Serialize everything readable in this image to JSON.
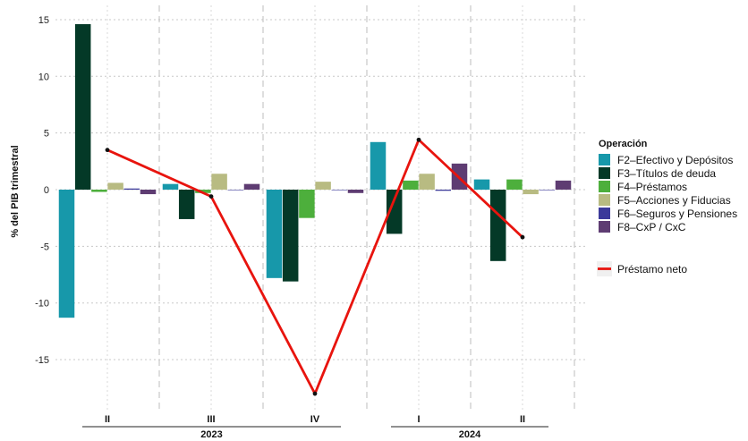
{
  "chart_data": {
    "type": "bar",
    "ylabel": "% del PIB trimestral",
    "ylim": [
      -19,
      16
    ],
    "yticks": [
      -15,
      -10,
      -5,
      0,
      5,
      10,
      15
    ],
    "categories": [
      "II",
      "III",
      "IV",
      "I",
      "II"
    ],
    "years": [
      {
        "label": "2023",
        "categories": [
          "II",
          "III",
          "IV"
        ]
      },
      {
        "label": "2024",
        "categories": [
          "I",
          "II"
        ]
      }
    ],
    "legend_title": "Operación",
    "legend_position": "right",
    "grid": true,
    "series": [
      {
        "name": "F2–Efectivo y Depósitos",
        "color": "#1798AA",
        "values": [
          -11.3,
          0.5,
          -7.8,
          4.2,
          0.9
        ]
      },
      {
        "name": "F3–Títulos de deuda",
        "color": "#043927",
        "values": [
          14.6,
          -2.6,
          -8.1,
          -3.9,
          -6.3
        ]
      },
      {
        "name": "F4–Préstamos",
        "color": "#4DAF3C",
        "values": [
          -0.2,
          -0.3,
          -2.5,
          0.8,
          0.9
        ]
      },
      {
        "name": "F5–Acciones y Fiducias",
        "color": "#B8BB82",
        "values": [
          0.6,
          1.4,
          0.7,
          1.4,
          -0.4
        ]
      },
      {
        "name": "F6–Seguros y Pensiones",
        "color": "#3C3A9A",
        "values": [
          0.1,
          0.0,
          0.0,
          -0.1,
          0.0
        ]
      },
      {
        "name": "F8–CxP / CxC",
        "color": "#5E3C72",
        "values": [
          -0.4,
          0.5,
          -0.3,
          2.3,
          0.8
        ]
      }
    ],
    "line": {
      "name": "Préstamo neto",
      "color": "#E8140E",
      "values": [
        3.5,
        -0.6,
        -18.0,
        4.4,
        -4.2
      ]
    }
  }
}
